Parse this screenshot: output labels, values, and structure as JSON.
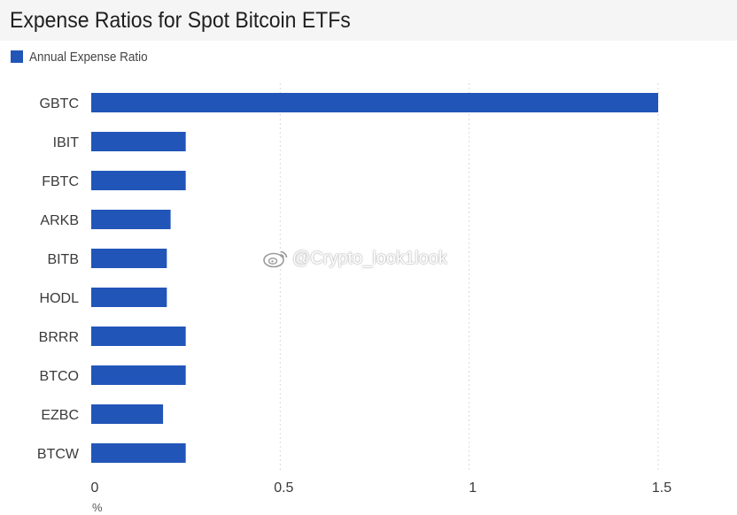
{
  "chart_data": {
    "type": "bar",
    "orientation": "horizontal",
    "title": "Expense Ratios for Spot Bitcoin ETFs",
    "categories": [
      "GBTC",
      "IBIT",
      "FBTC",
      "ARKB",
      "BITB",
      "HODL",
      "BRRR",
      "BTCO",
      "EZBC",
      "BTCW"
    ],
    "series": [
      {
        "name": "Annual Expense Ratio",
        "values": [
          1.5,
          0.25,
          0.25,
          0.21,
          0.2,
          0.2,
          0.25,
          0.25,
          0.19,
          0.25
        ]
      }
    ],
    "xlim": [
      0,
      1.5
    ],
    "xticks": [
      0,
      0.5,
      1,
      1.5
    ],
    "xtick_labels": [
      "0",
      "0.5",
      "1",
      "1.5"
    ],
    "xunit": "%",
    "grid": "vertical dotted",
    "legend_position": "top-left",
    "bar_color": "#2155b8"
  },
  "watermark": {
    "text": "@Crypto_look1look",
    "icon": "weibo-logo-icon"
  }
}
